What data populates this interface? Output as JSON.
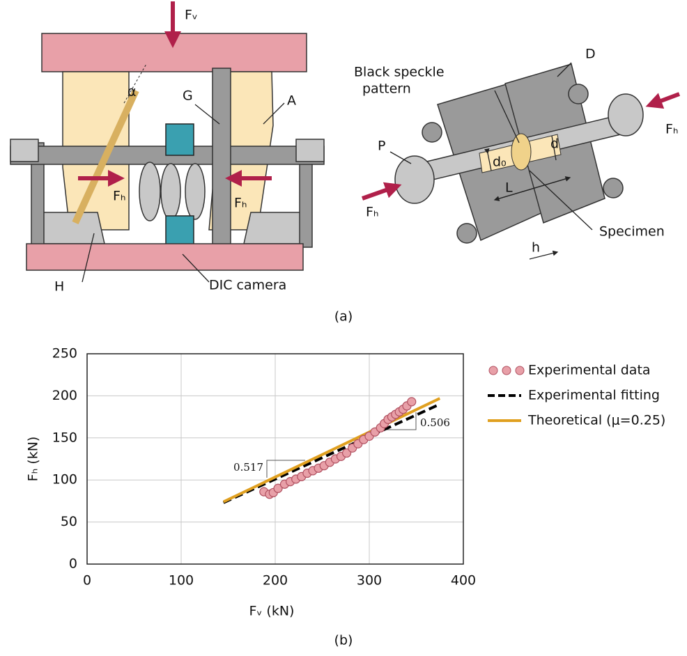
{
  "figure_a": {
    "labels": [
      "Fᵥ",
      "G",
      "A",
      "α",
      "Fₕ",
      "Fₕ",
      "H",
      "DIC camera",
      "Black speckle",
      "pattern",
      "D",
      "P",
      "d₀",
      "d",
      "L",
      "Fₕ",
      "Fₕ",
      "Specimen",
      "h"
    ],
    "caption": "(a)"
  },
  "chart_data": {
    "type": "scatter",
    "caption": "(b)",
    "xlabel": "Fᵥ (kN)",
    "ylabel": "Fₕ (kN)",
    "xlim": [
      0,
      400
    ],
    "xticks": [
      0,
      100,
      200,
      300,
      400
    ],
    "ylim": [
      0,
      250
    ],
    "yticks": [
      0,
      50,
      100,
      150,
      200,
      250
    ],
    "grid": true,
    "legend": "right",
    "annotations": [
      "0.517",
      "0.506"
    ],
    "series": [
      {
        "name": "Experimental data",
        "color": "#e8a0a8",
        "style": "marker",
        "x": [
          188,
          194,
          198,
          203,
          210,
          216,
          222,
          228,
          234,
          240,
          246,
          252,
          258,
          264,
          270,
          276,
          282,
          288,
          294,
          300,
          306,
          312,
          316,
          320,
          324,
          328,
          332,
          336,
          340,
          345
        ],
        "values": [
          86,
          83,
          85,
          90,
          95,
          98,
          101,
          104,
          108,
          111,
          114,
          117,
          121,
          125,
          128,
          132,
          138,
          143,
          148,
          152,
          157,
          162,
          167,
          172,
          175,
          178,
          181,
          184,
          188,
          193
        ]
      },
      {
        "name": "Experimental fitting",
        "color": "#000000",
        "style": "dashed",
        "x": [
          145,
          375
        ],
        "values": [
          73,
          190
        ]
      },
      {
        "name": "Theoretical (μ=0.25)",
        "color": "#e0a020",
        "style": "solid",
        "x": [
          145,
          375
        ],
        "values": [
          74,
          197
        ]
      }
    ]
  }
}
